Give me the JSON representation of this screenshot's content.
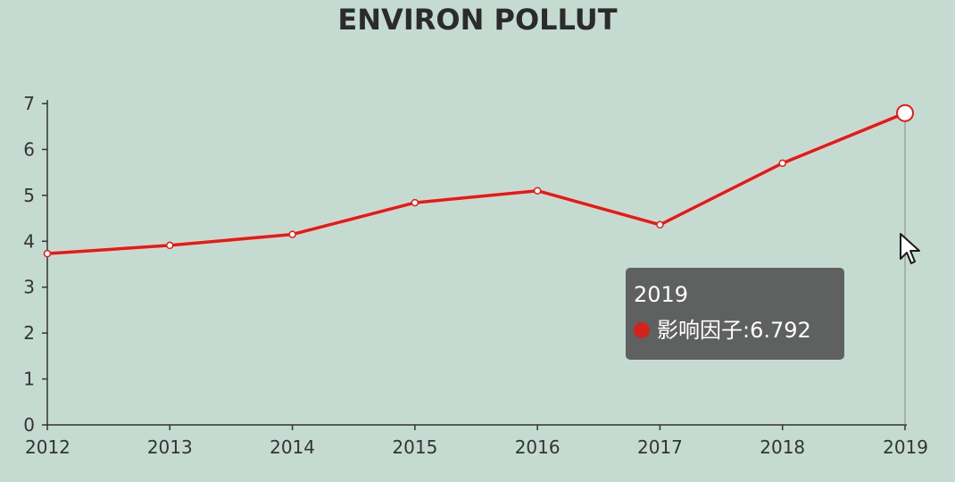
{
  "colors": {
    "background": "#c5dbd2",
    "line": "#d3221e",
    "tooltip_bg": "#5f6160"
  },
  "chart_data": {
    "type": "line",
    "title": "ENVIRON POLLUT",
    "x": [
      "2012",
      "2013",
      "2014",
      "2015",
      "2016",
      "2017",
      "2018",
      "2019"
    ],
    "series": [
      {
        "name": "影响因子",
        "values": [
          3.73,
          3.91,
          4.15,
          4.84,
          5.1,
          4.36,
          5.7,
          6.792
        ]
      }
    ],
    "ylim": [
      0,
      7
    ],
    "yticks": [
      "0",
      "1",
      "2",
      "3",
      "4",
      "5",
      "6",
      "7"
    ],
    "grid": false,
    "legend": "none",
    "highlighted_category": "2019"
  },
  "tooltip": {
    "title": "2019",
    "series_label": "影响因子",
    "separator": ": ",
    "value": "6.792"
  },
  "icons": {
    "cursor": "mouse-pointer-icon",
    "tooltip_marker": "circle-marker-icon"
  }
}
